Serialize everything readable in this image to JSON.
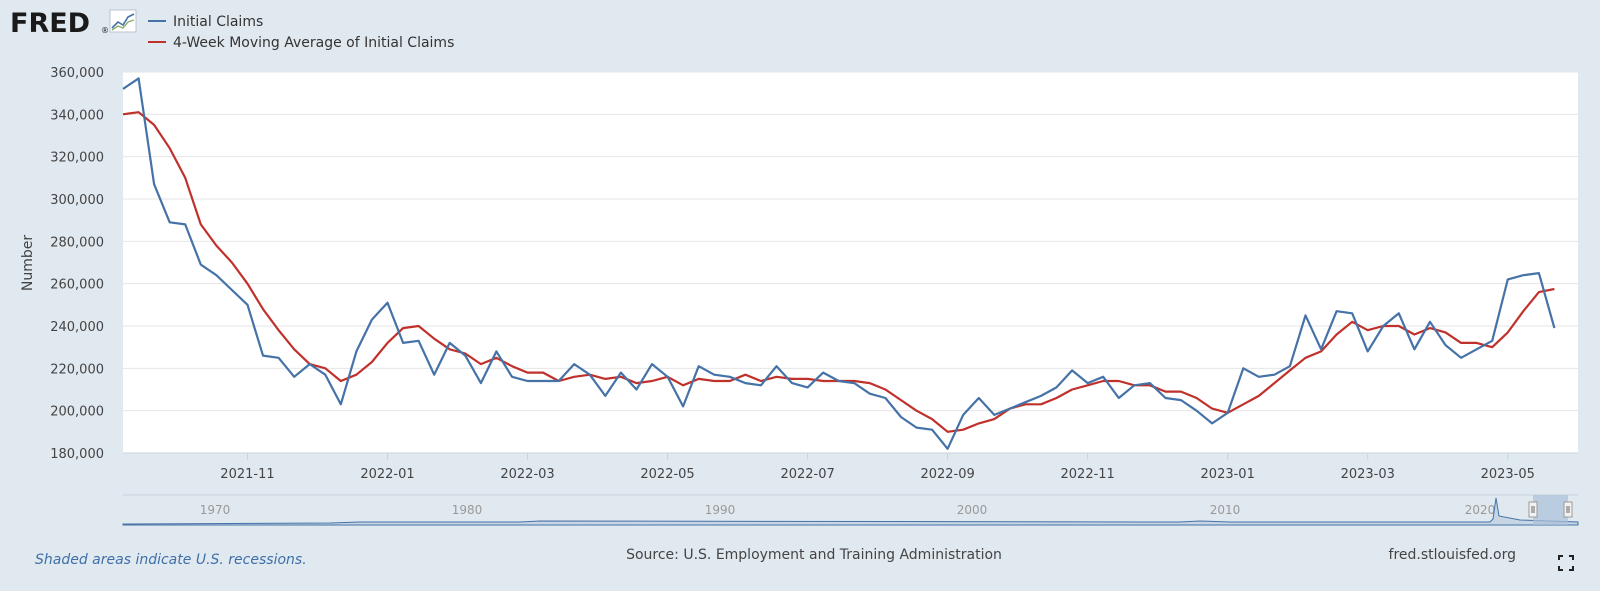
{
  "logo": {
    "text": "FRED",
    "registered": "®"
  },
  "legend": [
    {
      "label": "Initial Claims",
      "color": "#4572a7"
    },
    {
      "label": "4-Week Moving Average of Initial Claims",
      "color": "#c0312b"
    }
  ],
  "footer": {
    "recession_note": "Shaded areas indicate U.S. recessions.",
    "source": "Source: U.S. Employment and Training Administration",
    "site": "fred.stlouisfed.org"
  },
  "navigator": {
    "labels": [
      "1970",
      "1980",
      "1990",
      "2000",
      "2010",
      "2020"
    ]
  },
  "chart_data": {
    "type": "line",
    "title": "",
    "xlabel": "",
    "ylabel": "Number",
    "ylim": [
      180000,
      360000
    ],
    "y_ticks": [
      180000,
      200000,
      220000,
      240000,
      260000,
      280000,
      300000,
      320000,
      340000,
      360000
    ],
    "y_tick_labels": [
      "180,000",
      "200,000",
      "220,000",
      "240,000",
      "260,000",
      "280,000",
      "300,000",
      "320,000",
      "340,000",
      "360,000"
    ],
    "x_tick_labels": [
      "2021-11",
      "2022-01",
      "2022-03",
      "2022-05",
      "2022-07",
      "2022-09",
      "2022-11",
      "2023-01",
      "2023-03",
      "2023-05"
    ],
    "x_tick_weeks": [
      8,
      17,
      26,
      35,
      44,
      53,
      62,
      71,
      80,
      89
    ],
    "weeks_total": 94,
    "grid": true,
    "legend_position": "top-left",
    "series": [
      {
        "name": "Initial Claims",
        "color": "#4572a7",
        "values": [
          352000,
          357000,
          307000,
          289000,
          288000,
          269000,
          264000,
          257000,
          250000,
          226000,
          225000,
          216000,
          222000,
          217000,
          203000,
          228000,
          243000,
          251000,
          232000,
          233000,
          217000,
          232000,
          226000,
          213000,
          228000,
          216000,
          214000,
          214000,
          214000,
          222000,
          217000,
          207000,
          218000,
          210000,
          222000,
          216000,
          202000,
          221000,
          217000,
          216000,
          213000,
          212000,
          221000,
          213000,
          211000,
          218000,
          214000,
          213000,
          208000,
          206000,
          197000,
          192000,
          191000,
          182000,
          198000,
          206000,
          198000,
          201000,
          204000,
          207000,
          211000,
          219000,
          213000,
          216000,
          206000,
          212000,
          213000,
          206000,
          205000,
          200000,
          194000,
          199000,
          220000,
          216000,
          217000,
          221000,
          245000,
          229000,
          247000,
          246000,
          228000,
          240000,
          246000,
          229000,
          242000,
          231000,
          225000,
          229000,
          233000,
          262000,
          264000,
          265000,
          239000
        ]
      },
      {
        "name": "4-Week Moving Average of Initial Claims",
        "color": "#c0312b",
        "values": [
          340000,
          341000,
          335000,
          324000,
          310000,
          288000,
          278000,
          270000,
          260000,
          248000,
          238000,
          229000,
          222000,
          220000,
          214000,
          217000,
          223000,
          232000,
          239000,
          240000,
          234000,
          229000,
          227000,
          222000,
          225000,
          221000,
          218000,
          218000,
          214000,
          216000,
          217000,
          215000,
          216000,
          213000,
          214000,
          216000,
          212000,
          215000,
          214000,
          214000,
          217000,
          214000,
          216000,
          215000,
          215000,
          214000,
          214000,
          214000,
          213000,
          210000,
          205000,
          200000,
          196000,
          190000,
          191000,
          194000,
          196000,
          201000,
          203000,
          203000,
          206000,
          210000,
          212000,
          214000,
          214000,
          212000,
          212000,
          209000,
          209000,
          206000,
          201000,
          199000,
          203000,
          207000,
          213000,
          219000,
          225000,
          228000,
          236000,
          242000,
          238000,
          240000,
          240000,
          236000,
          239000,
          237000,
          232000,
          232000,
          230000,
          237000,
          247000,
          256000,
          257500
        ]
      }
    ]
  }
}
